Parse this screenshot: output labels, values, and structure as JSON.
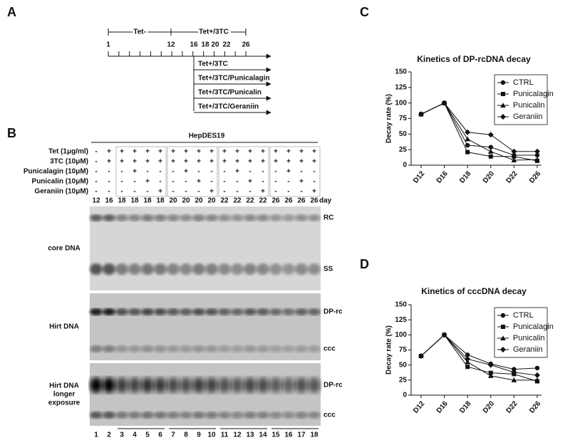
{
  "panel_labels": [
    "A",
    "B",
    "C",
    "D"
  ],
  "timeline": {
    "phase_labels": [
      "Tet-",
      "Tet+/3TC"
    ],
    "ticks": [
      "1",
      "12",
      "16",
      "18",
      "20",
      "22",
      "26"
    ],
    "arms": [
      "Tet+/3TC",
      "Tet+/3TC/Punicalagin",
      "Tet+/3TC/Punicalin",
      "Tet+/3TC/Geraniin"
    ]
  },
  "gel": {
    "cell_line": "HepDES19",
    "treatments": [
      {
        "label": "Tet (1μg/ml)",
        "signs": [
          "-",
          "+",
          "+",
          "+",
          "+",
          "+",
          "+",
          "+",
          "+",
          "+",
          "+",
          "+",
          "+",
          "+",
          "+",
          "+",
          "+",
          "+"
        ]
      },
      {
        "label": "3TC (10μM)",
        "signs": [
          "-",
          "+",
          "+",
          "+",
          "+",
          "+",
          "+",
          "+",
          "+",
          "+",
          "+",
          "+",
          "+",
          "+",
          "+",
          "+",
          "+",
          "+"
        ]
      },
      {
        "label": "Punicalagin (10μM)",
        "signs": [
          "-",
          "-",
          "-",
          "+",
          "-",
          "-",
          "-",
          "+",
          "-",
          "-",
          "-",
          "+",
          "-",
          "-",
          "-",
          "+",
          "-",
          "-"
        ]
      },
      {
        "label": "Punicalin (10μM)",
        "signs": [
          "-",
          "-",
          "-",
          "-",
          "+",
          "-",
          "-",
          "-",
          "+",
          "-",
          "-",
          "-",
          "+",
          "-",
          "-",
          "-",
          "+",
          "-"
        ]
      },
      {
        "label": "Geraniin (10μM)",
        "signs": [
          "-",
          "-",
          "-",
          "-",
          "-",
          "+",
          "-",
          "-",
          "-",
          "+",
          "-",
          "-",
          "-",
          "+",
          "-",
          "-",
          "-",
          "+"
        ]
      }
    ],
    "days": [
      12,
      16,
      18,
      18,
      18,
      18,
      20,
      20,
      20,
      20,
      22,
      22,
      22,
      22,
      26,
      26,
      26,
      26
    ],
    "day_label": "day",
    "blots": [
      {
        "label": [
          "core DNA"
        ],
        "bands": [
          "RC",
          "SS"
        ]
      },
      {
        "label": [
          "Hirt DNA"
        ],
        "bands": [
          "DP-rc",
          "ccc"
        ]
      },
      {
        "label": [
          "Hirt DNA",
          "longer",
          "exposure"
        ],
        "bands": [
          "DP-rc",
          "ccc"
        ]
      }
    ],
    "lanes": [
      1,
      2,
      3,
      4,
      5,
      6,
      7,
      8,
      9,
      10,
      11,
      12,
      13,
      14,
      15,
      16,
      17,
      18
    ]
  },
  "chart_data": [
    {
      "type": "line",
      "title": "Kinetics of DP-rcDNA decay",
      "y_label": "Decay rate (%)",
      "categories": [
        "D12",
        "D16",
        "D18",
        "D20",
        "D22",
        "D26"
      ],
      "ylim": [
        0,
        150
      ],
      "yticks": [
        0,
        25,
        50,
        75,
        100,
        125,
        150
      ],
      "legend": "upper right",
      "series": [
        {
          "name": "CTRL",
          "color": "#111111",
          "marker": "circle",
          "values": [
            82,
            100,
            32,
            29,
            16,
            16
          ]
        },
        {
          "name": "Punicalagin",
          "color": "#111111",
          "marker": "square",
          "values": [
            82,
            100,
            21,
            14,
            14,
            7
          ]
        },
        {
          "name": "Punicalin",
          "color": "#111111",
          "marker": "triangle",
          "values": [
            82,
            100,
            42,
            22,
            8,
            9
          ]
        },
        {
          "name": "Geraniin",
          "color": "#111111",
          "marker": "diamond",
          "values": [
            82,
            100,
            53,
            49,
            22,
            22
          ]
        }
      ]
    },
    {
      "type": "line",
      "title": "Kinetics of cccDNA decay",
      "y_label": "Decay rate (%)",
      "categories": [
        "D12",
        "D16",
        "D18",
        "D20",
        "D22",
        "D26"
      ],
      "ylim": [
        0,
        150
      ],
      "yticks": [
        0,
        25,
        50,
        75,
        100,
        125,
        150
      ],
      "legend": "upper right",
      "series": [
        {
          "name": "CTRL",
          "color": "#111111",
          "marker": "circle",
          "values": [
            65,
            100,
            67,
            52,
            43,
            45
          ]
        },
        {
          "name": "Punicalagin",
          "color": "#111111",
          "marker": "square",
          "values": [
            65,
            100,
            47,
            37,
            35,
            23
          ]
        },
        {
          "name": "Punicalin",
          "color": "#111111",
          "marker": "triangle",
          "values": [
            65,
            100,
            55,
            32,
            25,
            25
          ]
        },
        {
          "name": "Geraniin",
          "color": "#111111",
          "marker": "diamond",
          "values": [
            65,
            100,
            60,
            50,
            38,
            33
          ]
        }
      ]
    }
  ]
}
